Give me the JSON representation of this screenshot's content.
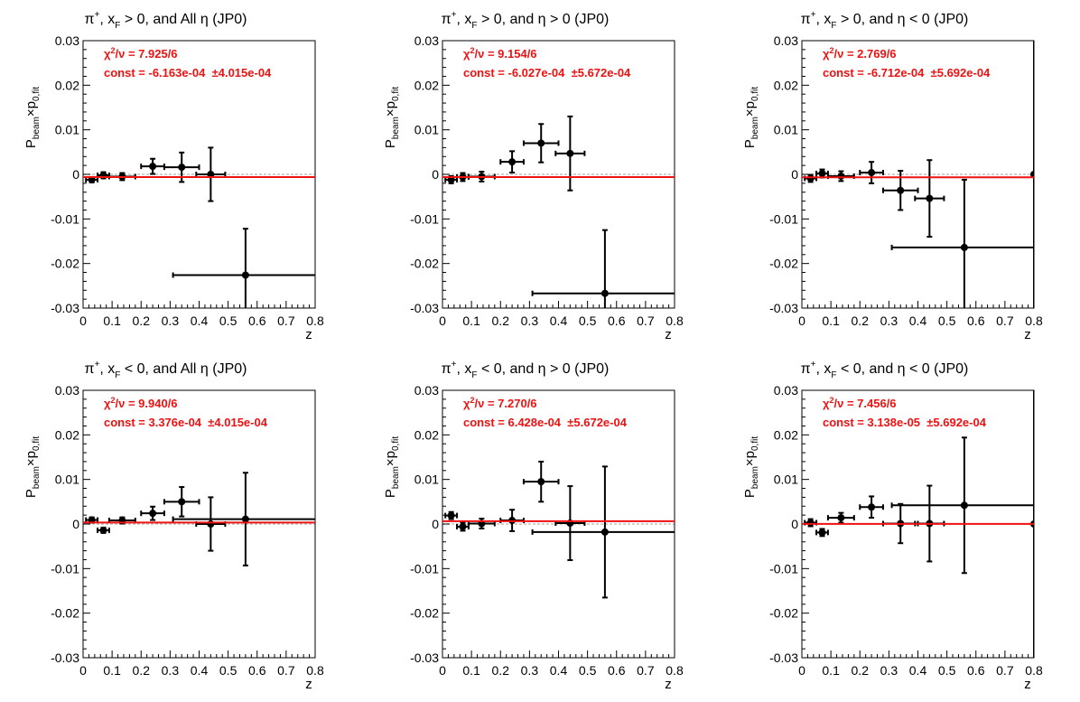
{
  "chart_data": [
    {
      "type": "scatter",
      "title": "π⁺, x_F > 0, and All η (JP0)",
      "xlabel": "z",
      "ylabel": "P_beam × p_0,fit",
      "xlim": [
        0,
        0.8
      ],
      "ylim": [
        -0.03,
        0.03
      ],
      "xticks": [
        "0",
        "0.1",
        "0.2",
        "0.3",
        "0.4",
        "0.5",
        "0.6",
        "0.7",
        "0.8"
      ],
      "yticks": [
        "-0.03",
        "-0.02",
        "-0.01",
        "0",
        "0.01",
        "0.02",
        "0.03"
      ],
      "fit": {
        "chi2_label": "χ²/ν = 7.925/6",
        "const_label": "const = -6.163e-04  ±4.015e-04",
        "value": -0.0006163
      },
      "points": [
        {
          "x": 0.03,
          "xerr": 0.02,
          "y": -0.0012,
          "yerr": 0.0006
        },
        {
          "x": 0.07,
          "xerr": 0.02,
          "y": -0.0002,
          "yerr": 0.0007
        },
        {
          "x": 0.135,
          "xerr": 0.045,
          "y": -0.0005,
          "yerr": 0.0008
        },
        {
          "x": 0.24,
          "xerr": 0.04,
          "y": 0.0018,
          "yerr": 0.0017
        },
        {
          "x": 0.34,
          "xerr": 0.06,
          "y": 0.0016,
          "yerr": 0.0033
        },
        {
          "x": 0.44,
          "xerr": 0.05,
          "y": 0.0,
          "yerr": 0.006
        },
        {
          "x": 0.56,
          "xerr": 0.25,
          "y": -0.0226,
          "yerr": 0.0104
        }
      ]
    },
    {
      "type": "scatter",
      "title": "π⁺, x_F > 0, and η > 0 (JP0)",
      "xlabel": "z",
      "ylabel": "P_beam × p_0,fit",
      "xlim": [
        0,
        0.8
      ],
      "ylim": [
        -0.03,
        0.03
      ],
      "xticks": [
        "0",
        "0.1",
        "0.2",
        "0.3",
        "0.4",
        "0.5",
        "0.6",
        "0.7",
        "0.8"
      ],
      "yticks": [
        "-0.03",
        "-0.02",
        "-0.01",
        "0",
        "0.01",
        "0.02",
        "0.03"
      ],
      "fit": {
        "chi2_label": "χ²/ν = 9.154/6",
        "const_label": "const = -6.027e-04  ±5.672e-04",
        "value": -0.0006027
      },
      "points": [
        {
          "x": 0.03,
          "xerr": 0.02,
          "y": -0.0012,
          "yerr": 0.0008
        },
        {
          "x": 0.07,
          "xerr": 0.02,
          "y": -0.0006,
          "yerr": 0.0009
        },
        {
          "x": 0.135,
          "xerr": 0.045,
          "y": -0.0005,
          "yerr": 0.0011
        },
        {
          "x": 0.24,
          "xerr": 0.04,
          "y": 0.0028,
          "yerr": 0.0024
        },
        {
          "x": 0.34,
          "xerr": 0.06,
          "y": 0.007,
          "yerr": 0.0043
        },
        {
          "x": 0.44,
          "xerr": 0.05,
          "y": 0.0047,
          "yerr": 0.0083
        },
        {
          "x": 0.56,
          "xerr": 0.25,
          "y": -0.0267,
          "yerr": 0.0142
        }
      ]
    },
    {
      "type": "scatter",
      "title": "π⁺, x_F > 0, and η < 0 (JP0)",
      "xlabel": "z",
      "ylabel": "P_beam × p_0,fit",
      "xlim": [
        0,
        0.8
      ],
      "ylim": [
        -0.03,
        0.03
      ],
      "xticks": [
        "0",
        "0.1",
        "0.2",
        "0.3",
        "0.4",
        "0.5",
        "0.6",
        "0.7",
        "0.8"
      ],
      "yticks": [
        "-0.03",
        "-0.02",
        "-0.01",
        "0",
        "0.01",
        "0.02",
        "0.03"
      ],
      "fit": {
        "chi2_label": "χ²/ν = 2.769/6",
        "const_label": "const = -6.712e-04  ±5.692e-04",
        "value": -0.0006712
      },
      "points": [
        {
          "x": 0.03,
          "xerr": 0.02,
          "y": -0.0009,
          "yerr": 0.0008
        },
        {
          "x": 0.07,
          "xerr": 0.02,
          "y": 0.0002,
          "yerr": 0.0009
        },
        {
          "x": 0.135,
          "xerr": 0.045,
          "y": -0.0004,
          "yerr": 0.0011
        },
        {
          "x": 0.24,
          "xerr": 0.04,
          "y": 0.0004,
          "yerr": 0.0024
        },
        {
          "x": 0.34,
          "xerr": 0.06,
          "y": -0.0036,
          "yerr": 0.0044
        },
        {
          "x": 0.44,
          "xerr": 0.05,
          "y": -0.0054,
          "yerr": 0.0086
        },
        {
          "x": 0.56,
          "xerr": 0.25,
          "y": -0.0164,
          "yerr": 0.0152
        },
        {
          "x": 0.8,
          "xerr": 0,
          "y": 0.0,
          "yerr": 0.031
        }
      ]
    },
    {
      "type": "scatter",
      "title": "π⁺, x_F < 0, and All η (JP0)",
      "xlabel": "z",
      "ylabel": "P_beam × p_0,fit",
      "xlim": [
        0,
        0.8
      ],
      "ylim": [
        -0.03,
        0.03
      ],
      "xticks": [
        "0",
        "0.1",
        "0.2",
        "0.3",
        "0.4",
        "0.5",
        "0.6",
        "0.7",
        "0.8"
      ],
      "yticks": [
        "-0.03",
        "-0.02",
        "-0.01",
        "0",
        "0.01",
        "0.02",
        "0.03"
      ],
      "fit": {
        "chi2_label": "χ²/ν = 9.940/6",
        "const_label": "const = 3.376e-04  ±4.015e-04",
        "value": 0.0003376
      },
      "points": [
        {
          "x": 0.03,
          "xerr": 0.02,
          "y": 0.0009,
          "yerr": 0.0006
        },
        {
          "x": 0.07,
          "xerr": 0.02,
          "y": -0.0014,
          "yerr": 0.0006
        },
        {
          "x": 0.135,
          "xerr": 0.045,
          "y": 0.0008,
          "yerr": 0.0007
        },
        {
          "x": 0.24,
          "xerr": 0.04,
          "y": 0.0024,
          "yerr": 0.0015
        },
        {
          "x": 0.34,
          "xerr": 0.06,
          "y": 0.005,
          "yerr": 0.0033
        },
        {
          "x": 0.44,
          "xerr": 0.05,
          "y": 0.0,
          "yerr": 0.006
        },
        {
          "x": 0.56,
          "xerr": 0.25,
          "y": 0.0011,
          "yerr": 0.0104
        }
      ]
    },
    {
      "type": "scatter",
      "title": "π⁺, x_F < 0, and η > 0 (JP0)",
      "xlabel": "z",
      "ylabel": "P_beam × p_0,fit",
      "xlim": [
        0,
        0.8
      ],
      "ylim": [
        -0.03,
        0.03
      ],
      "xticks": [
        "0",
        "0.1",
        "0.2",
        "0.3",
        "0.4",
        "0.5",
        "0.6",
        "0.7",
        "0.8"
      ],
      "yticks": [
        "-0.03",
        "-0.02",
        "-0.01",
        "0",
        "0.01",
        "0.02",
        "0.03"
      ],
      "fit": {
        "chi2_label": "χ²/ν = 7.270/6",
        "const_label": "const = 6.428e-04  ±5.672e-04",
        "value": 0.0006428
      },
      "points": [
        {
          "x": 0.03,
          "xerr": 0.02,
          "y": 0.0019,
          "yerr": 0.0008
        },
        {
          "x": 0.07,
          "xerr": 0.02,
          "y": -0.0006,
          "yerr": 0.0009
        },
        {
          "x": 0.135,
          "xerr": 0.045,
          "y": 0.0001,
          "yerr": 0.0011
        },
        {
          "x": 0.24,
          "xerr": 0.04,
          "y": 0.0008,
          "yerr": 0.0024
        },
        {
          "x": 0.34,
          "xerr": 0.06,
          "y": 0.0095,
          "yerr": 0.0045
        },
        {
          "x": 0.44,
          "xerr": 0.05,
          "y": 0.0002,
          "yerr": 0.0083
        },
        {
          "x": 0.56,
          "xerr": 0.25,
          "y": -0.0018,
          "yerr": 0.0147
        }
      ]
    },
    {
      "type": "scatter",
      "title": "π⁺, x_F < 0, and η < 0 (JP0)",
      "xlabel": "z",
      "ylabel": "P_beam × p_0,fit",
      "xlim": [
        0,
        0.8
      ],
      "ylim": [
        -0.03,
        0.03
      ],
      "xticks": [
        "0",
        "0.1",
        "0.2",
        "0.3",
        "0.4",
        "0.5",
        "0.6",
        "0.7",
        "0.8"
      ],
      "yticks": [
        "-0.03",
        "-0.02",
        "-0.01",
        "0",
        "0.01",
        "0.02",
        "0.03"
      ],
      "fit": {
        "chi2_label": "χ²/ν = 7.456/6",
        "const_label": "const = 3.138e-05  ±5.692e-04",
        "value": 3.138e-05
      },
      "points": [
        {
          "x": 0.03,
          "xerr": 0.02,
          "y": 0.0003,
          "yerr": 0.0008
        },
        {
          "x": 0.07,
          "xerr": 0.02,
          "y": -0.0019,
          "yerr": 0.0008
        },
        {
          "x": 0.135,
          "xerr": 0.045,
          "y": 0.0014,
          "yerr": 0.0011
        },
        {
          "x": 0.24,
          "xerr": 0.04,
          "y": 0.0038,
          "yerr": 0.0024
        },
        {
          "x": 0.34,
          "xerr": 0.06,
          "y": 0.0001,
          "yerr": 0.0044
        },
        {
          "x": 0.44,
          "xerr": 0.05,
          "y": 0.0001,
          "yerr": 0.0085
        },
        {
          "x": 0.56,
          "xerr": 0.25,
          "y": 0.0042,
          "yerr": 0.0152
        },
        {
          "x": 0.8,
          "xerr": 0,
          "y": 0.0,
          "yerr": 0.031
        }
      ]
    }
  ],
  "colors": {
    "fit_line": "#ee1111",
    "stat_text": "#ee1111",
    "zero_line": "#b4b4b4",
    "marker": "#000000",
    "axis": "#000000"
  }
}
